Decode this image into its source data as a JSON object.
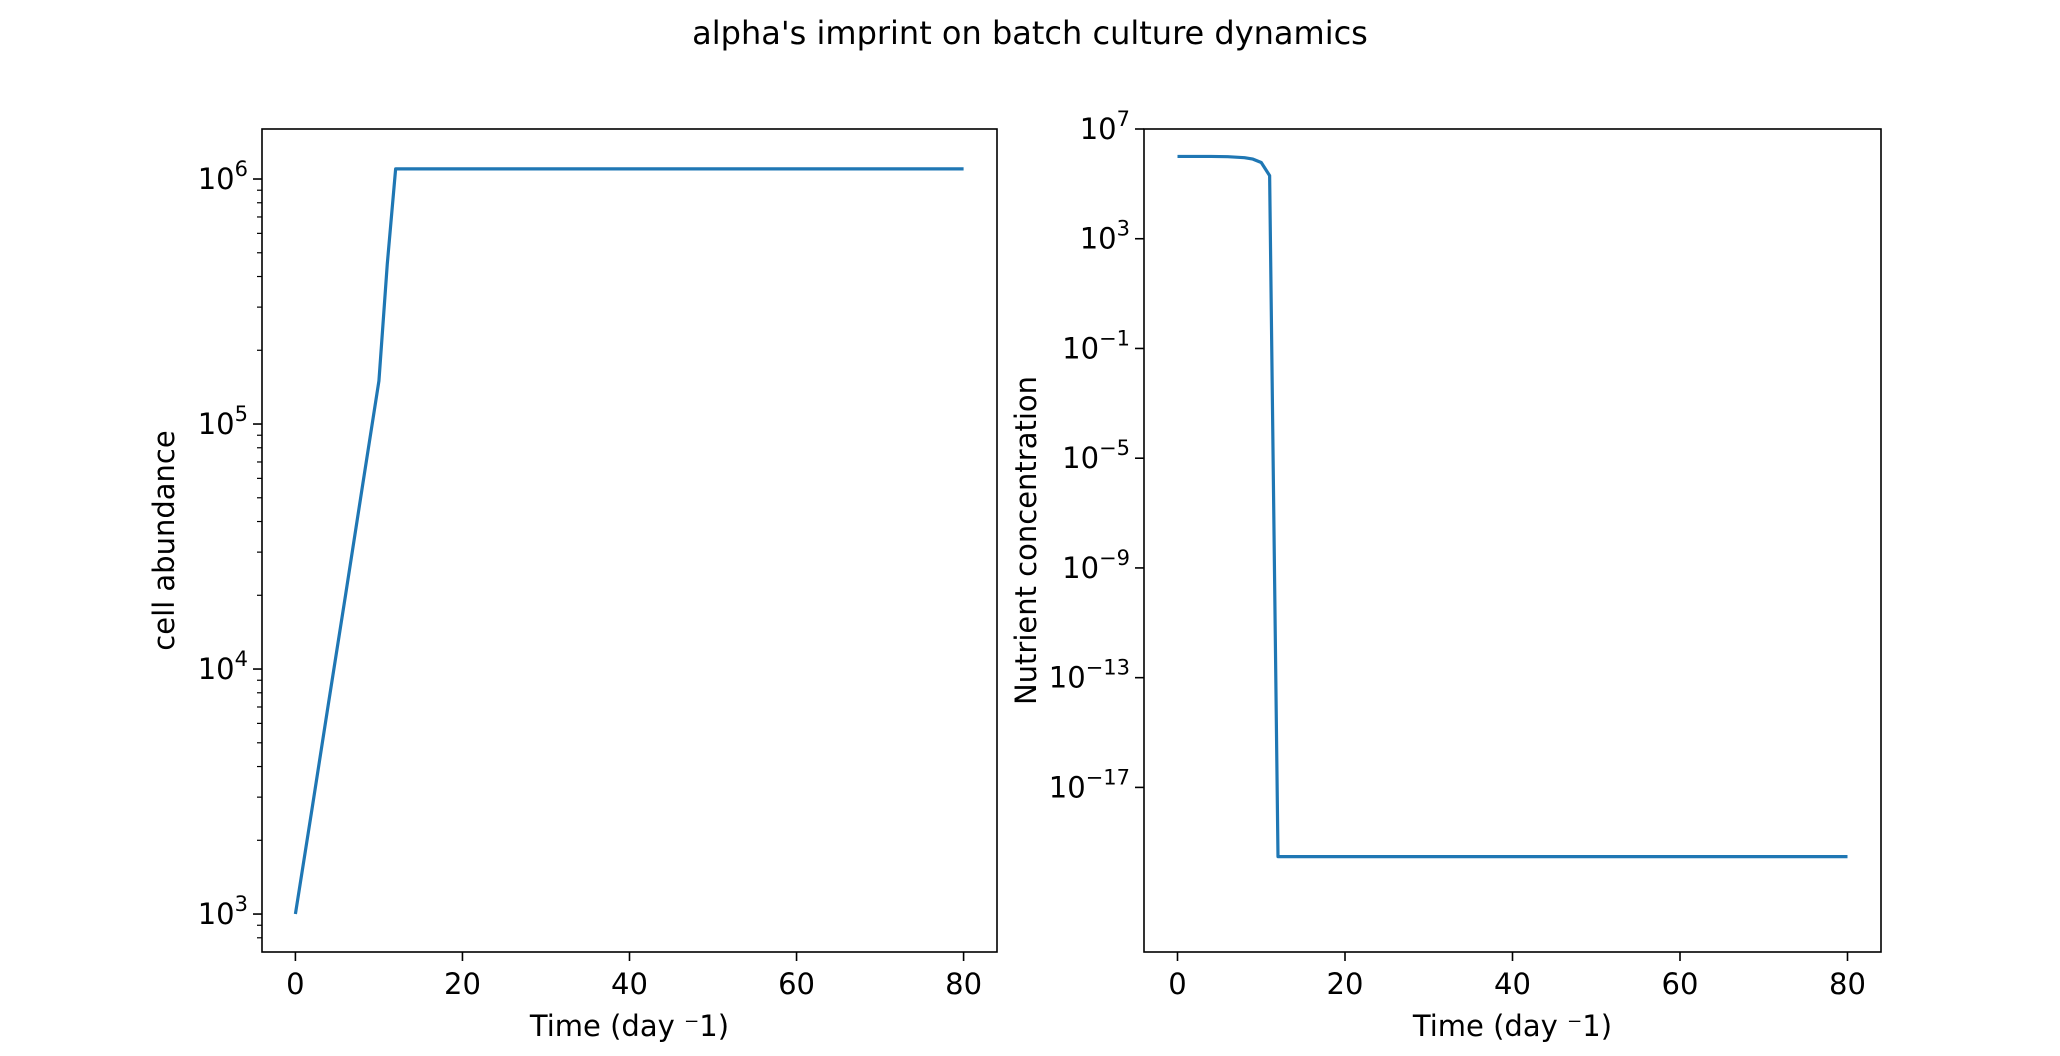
{
  "figure": {
    "title": "alpha's imprint on batch culture dynamics"
  },
  "colors": {
    "series": "#1f77b4",
    "axes": "#000000",
    "background": "#ffffff"
  },
  "chart_data": [
    {
      "type": "line",
      "title": "",
      "xlabel": "Time (day ⁻1)",
      "ylabel": "cell abundance",
      "xscale": "linear",
      "yscale": "log",
      "xlim": [
        -4,
        84
      ],
      "ylim": [
        700,
        1600000
      ],
      "xticks": [
        0,
        20,
        40,
        60,
        80
      ],
      "xtick_labels": [
        "0",
        "20",
        "40",
        "60",
        "80"
      ],
      "yticks": [
        1000,
        10000,
        100000,
        1000000
      ],
      "ytick_labels": [
        {
          "base": "10",
          "exp": "3"
        },
        {
          "base": "10",
          "exp": "4"
        },
        {
          "base": "10",
          "exp": "5"
        },
        {
          "base": "10",
          "exp": "6"
        }
      ],
      "grid": false,
      "legend": "none",
      "series": [
        {
          "x": [
            0,
            2,
            4,
            6,
            8,
            10,
            11,
            12,
            80
          ],
          "y": [
            1000,
            2700,
            7400,
            20000,
            55000,
            150000,
            450000,
            1100000,
            1100000
          ]
        }
      ]
    },
    {
      "type": "line",
      "title": "",
      "xlabel": "Time (day ⁻1)",
      "ylabel": "Nutrient concentration",
      "xscale": "linear",
      "yscale": "log",
      "xlim": [
        -4,
        84
      ],
      "ylim": [
        1e-23,
        10000000.0
      ],
      "xticks": [
        0,
        20,
        40,
        60,
        80
      ],
      "xtick_labels": [
        "0",
        "20",
        "40",
        "60",
        "80"
      ],
      "yticks": [
        1e-17,
        1e-13,
        1e-09,
        1e-05,
        0.1,
        1000,
        10000000
      ],
      "ytick_labels": [
        {
          "base": "10",
          "exp": "−17"
        },
        {
          "base": "10",
          "exp": "−13"
        },
        {
          "base": "10",
          "exp": "−9"
        },
        {
          "base": "10",
          "exp": "−5"
        },
        {
          "base": "10",
          "exp": "−1"
        },
        {
          "base": "10",
          "exp": "3"
        },
        {
          "base": "10",
          "exp": "7"
        }
      ],
      "grid": false,
      "legend": "none",
      "series": [
        {
          "x": [
            0,
            4,
            6,
            8,
            9,
            10,
            11,
            12,
            80
          ],
          "y": [
            1000000,
            1000000,
            980000,
            900000,
            800000,
            600000,
            200000,
            3e-20,
            3e-20
          ]
        }
      ]
    }
  ]
}
